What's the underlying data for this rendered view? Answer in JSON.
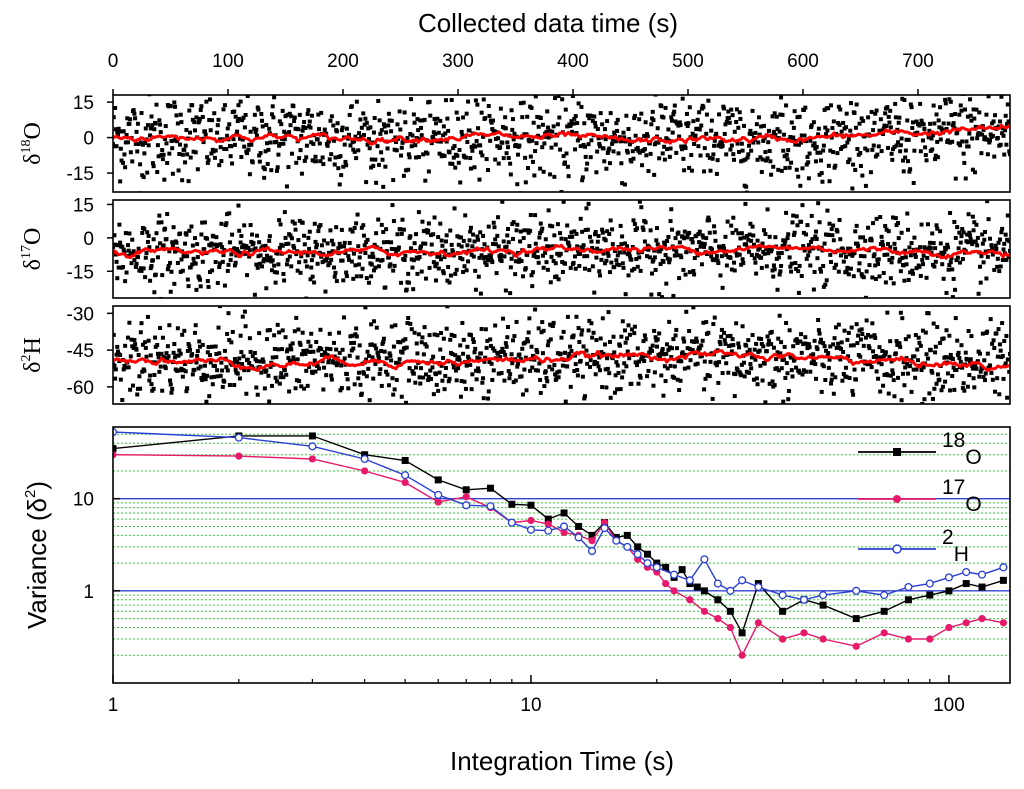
{
  "chart_data": [
    {
      "id": "top-panels",
      "type": "scatter",
      "title": "Collected data time (s)",
      "x_tick_labels": [
        "0",
        "100",
        "200",
        "300",
        "400",
        "500",
        "600",
        "700"
      ],
      "x_ticks": [
        0,
        100,
        200,
        300,
        400,
        500,
        600,
        700
      ],
      "xlim": [
        0,
        780
      ],
      "panels": [
        {
          "key": "d18o",
          "label_main": "δ",
          "label_sup": "18",
          "label_end": "O",
          "ylim": [
            -23,
            18
          ],
          "y_ticks": [
            15,
            0,
            -15
          ],
          "y_tick_labels": [
            "15",
            "0",
            "-15"
          ],
          "raw_center": 0,
          "raw_spread": 9,
          "raw_color": "#000000",
          "smooth_color": "#ff0000",
          "smooth_trend": [
            [
              0,
              0
            ],
            [
              100,
              0.5
            ],
            [
              200,
              -0.5
            ],
            [
              300,
              0.5
            ],
            [
              400,
              0
            ],
            [
              450,
              -2
            ],
            [
              500,
              -1
            ],
            [
              600,
              -0.5
            ],
            [
              700,
              2
            ],
            [
              780,
              4
            ]
          ]
        },
        {
          "key": "d17o",
          "label_main": "δ",
          "label_sup": "17",
          "label_end": "O",
          "ylim": [
            -27,
            17
          ],
          "y_ticks": [
            15,
            0,
            -15
          ],
          "y_tick_labels": [
            "15",
            "0",
            "-15"
          ],
          "raw_center": -6,
          "raw_spread": 8,
          "raw_color": "#000000",
          "smooth_color": "#ff0000",
          "smooth_trend": [
            [
              0,
              -7
            ],
            [
              100,
              -7
            ],
            [
              200,
              -6.5
            ],
            [
              300,
              -6
            ],
            [
              400,
              -5
            ],
            [
              500,
              -5
            ],
            [
              600,
              -4.5
            ],
            [
              700,
              -6
            ],
            [
              780,
              -7
            ]
          ]
        },
        {
          "key": "d2h",
          "label_main": "δ",
          "label_sup": "2",
          "label_end": "H",
          "ylim": [
            -67,
            -27
          ],
          "y_ticks": [
            -30,
            -45,
            -60
          ],
          "y_tick_labels": [
            "-30",
            "-45",
            "-60"
          ],
          "raw_center": -48,
          "raw_spread": 8,
          "raw_color": "#000000",
          "smooth_color": "#ff0000",
          "smooth_trend": [
            [
              0,
              -48
            ],
            [
              100,
              -50
            ],
            [
              150,
              -51
            ],
            [
              200,
              -49
            ],
            [
              300,
              -50
            ],
            [
              400,
              -48
            ],
            [
              500,
              -47
            ],
            [
              600,
              -48
            ],
            [
              700,
              -50
            ],
            [
              780,
              -52
            ]
          ]
        }
      ]
    },
    {
      "id": "allan-variance",
      "type": "line",
      "xlabel": "Integration Time (s)",
      "ylabel": "Variance (δ",
      "ylabel_sup": "2",
      "ylabel_end": ")",
      "x_scale": "log",
      "y_scale": "log",
      "xlim": [
        1,
        140
      ],
      "ylim": [
        0.1,
        60
      ],
      "x_ticks": [
        1,
        10,
        100
      ],
      "x_tick_labels": [
        "1",
        "10",
        "100"
      ],
      "y_ticks": [
        1,
        10
      ],
      "y_tick_labels": [
        "1",
        "10"
      ],
      "gridlines_major": [
        1,
        10
      ],
      "series": [
        {
          "name": "18O",
          "legend_sup": "18",
          "legend_sub": "O",
          "color": "#000000",
          "marker": "filled-square",
          "points": [
            [
              1,
              35
            ],
            [
              2,
              48
            ],
            [
              3,
              48
            ],
            [
              4,
              30
            ],
            [
              5,
              26
            ],
            [
              6,
              16
            ],
            [
              7,
              12.5
            ],
            [
              8,
              13
            ],
            [
              9,
              8.7
            ],
            [
              10,
              8.5
            ],
            [
              11,
              6
            ],
            [
              12,
              7
            ],
            [
              13,
              5
            ],
            [
              14,
              4
            ],
            [
              15,
              5.5
            ],
            [
              16,
              3.8
            ],
            [
              17,
              4
            ],
            [
              18,
              3
            ],
            [
              19,
              2.5
            ],
            [
              20,
              2
            ],
            [
              21,
              1.8
            ],
            [
              22,
              1.4
            ],
            [
              23,
              1.7
            ],
            [
              24,
              1.2
            ],
            [
              25,
              1.1
            ],
            [
              26,
              1.0
            ],
            [
              28,
              0.8
            ],
            [
              30,
              0.6
            ],
            [
              32,
              0.35
            ],
            [
              35,
              1.2
            ],
            [
              40,
              0.6
            ],
            [
              45,
              0.8
            ],
            [
              50,
              0.7
            ],
            [
              60,
              0.5
            ],
            [
              70,
              0.6
            ],
            [
              80,
              0.8
            ],
            [
              90,
              0.9
            ],
            [
              100,
              1.0
            ],
            [
              110,
              1.2
            ],
            [
              120,
              1.1
            ],
            [
              135,
              1.3
            ]
          ]
        },
        {
          "name": "17O",
          "legend_sup": "17",
          "legend_sub": "O",
          "color": "#e8186a",
          "marker": "filled-circle",
          "points": [
            [
              1,
              30
            ],
            [
              2,
              29
            ],
            [
              3,
              27
            ],
            [
              4,
              20
            ],
            [
              5,
              15
            ],
            [
              6,
              9.2
            ],
            [
              7,
              10.5
            ],
            [
              8,
              8
            ],
            [
              9,
              5.5
            ],
            [
              10,
              5.8
            ],
            [
              11,
              5.3
            ],
            [
              12,
              4.3
            ],
            [
              13,
              4
            ],
            [
              14,
              3.5
            ],
            [
              15,
              5.5
            ],
            [
              16,
              3.5
            ],
            [
              17,
              3
            ],
            [
              18,
              2.2
            ],
            [
              19,
              1.8
            ],
            [
              20,
              1.6
            ],
            [
              21,
              1.2
            ],
            [
              22,
              1
            ],
            [
              24,
              0.8
            ],
            [
              26,
              0.6
            ],
            [
              28,
              0.5
            ],
            [
              30,
              0.4
            ],
            [
              32,
              0.2
            ],
            [
              35,
              0.45
            ],
            [
              40,
              0.3
            ],
            [
              45,
              0.35
            ],
            [
              50,
              0.3
            ],
            [
              60,
              0.25
            ],
            [
              70,
              0.35
            ],
            [
              80,
              0.3
            ],
            [
              90,
              0.3
            ],
            [
              100,
              0.4
            ],
            [
              110,
              0.45
            ],
            [
              120,
              0.5
            ],
            [
              135,
              0.45
            ]
          ]
        },
        {
          "name": "2H",
          "legend_sup": "2",
          "legend_sub": "H",
          "color": "#2a3fd6",
          "marker": "open-circle",
          "points": [
            [
              1,
              53
            ],
            [
              2,
              46
            ],
            [
              3,
              37
            ],
            [
              4,
              27
            ],
            [
              5,
              18
            ],
            [
              6,
              11
            ],
            [
              7,
              8.5
            ],
            [
              8,
              8.3
            ],
            [
              9,
              5.5
            ],
            [
              10,
              4.6
            ],
            [
              11,
              4.5
            ],
            [
              12,
              5
            ],
            [
              13,
              3.8
            ],
            [
              14,
              2.7
            ],
            [
              15,
              4.8
            ],
            [
              16,
              3.5
            ],
            [
              17,
              3
            ],
            [
              18,
              2.5
            ],
            [
              19,
              2
            ],
            [
              20,
              1.8
            ],
            [
              22,
              1.5
            ],
            [
              24,
              1.3
            ],
            [
              26,
              2.2
            ],
            [
              28,
              1.2
            ],
            [
              30,
              1.0
            ],
            [
              32,
              1.3
            ],
            [
              35,
              1.1
            ],
            [
              40,
              0.9
            ],
            [
              45,
              0.8
            ],
            [
              50,
              0.9
            ],
            [
              60,
              1.0
            ],
            [
              70,
              0.9
            ],
            [
              80,
              1.1
            ],
            [
              90,
              1.2
            ],
            [
              100,
              1.4
            ],
            [
              110,
              1.6
            ],
            [
              120,
              1.5
            ],
            [
              135,
              1.8
            ]
          ]
        }
      ]
    }
  ]
}
